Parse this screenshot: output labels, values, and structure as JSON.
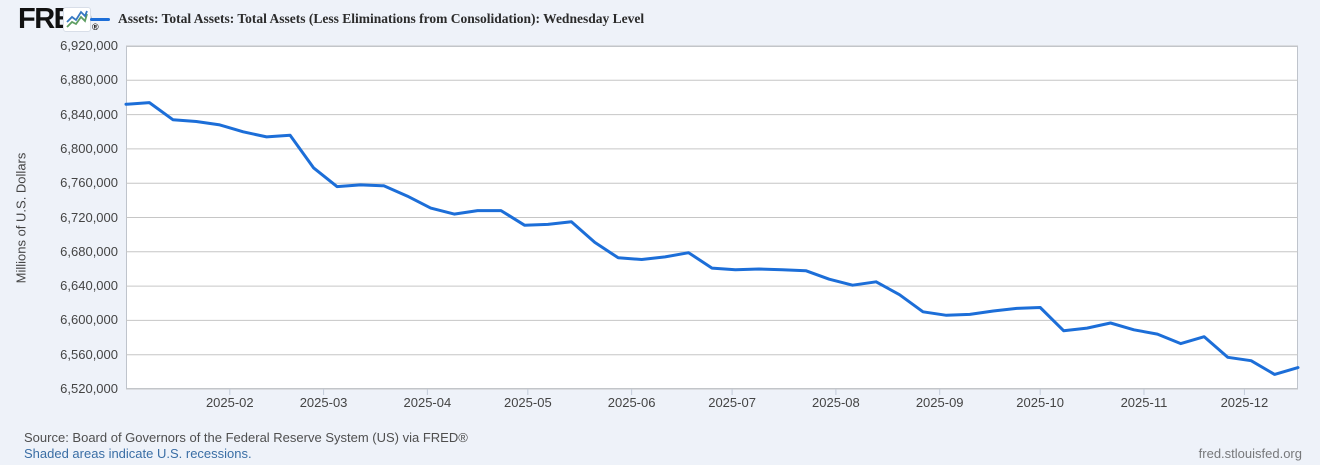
{
  "header": {
    "logo": "FRED",
    "registered": "®",
    "legend_label": "Assets: Total Assets: Total Assets (Less Eliminations from Consolidation): Wednesday Level"
  },
  "chart_data": {
    "type": "line",
    "title": "Assets: Total Assets: Total Assets (Less Eliminations from Consolidation): Wednesday Level",
    "ylabel": "Millions of U.S. Dollars",
    "ylim": [
      6520000,
      6920000
    ],
    "y_tick_step": 40000,
    "y_tick_labels": [
      "6,920,000",
      "6,880,000",
      "6,840,000",
      "6,800,000",
      "6,760,000",
      "6,720,000",
      "6,680,000",
      "6,640,000",
      "6,600,000",
      "6,560,000",
      "6,520,000"
    ],
    "x_tick_labels": [
      "2025-02",
      "2025-03",
      "2025-04",
      "2025-05",
      "2025-06",
      "2025-07",
      "2025-08",
      "2025-09",
      "2025-10",
      "2025-11",
      "2025-12"
    ],
    "grid": true,
    "legend_position": "top",
    "series": [
      {
        "name": "Assets: Total Assets: Total Assets (Less Eliminations from Consolidation): Wednesday Level",
        "frequency": "weekly-wednesday",
        "x": [
          "2025-01-01",
          "2025-01-08",
          "2025-01-15",
          "2025-01-22",
          "2025-01-29",
          "2025-02-05",
          "2025-02-12",
          "2025-02-19",
          "2025-02-26",
          "2025-03-05",
          "2025-03-12",
          "2025-03-19",
          "2025-03-26",
          "2025-04-02",
          "2025-04-09",
          "2025-04-16",
          "2025-04-23",
          "2025-04-30",
          "2025-05-07",
          "2025-05-14",
          "2025-05-21",
          "2025-05-28",
          "2025-06-04",
          "2025-06-11",
          "2025-06-18",
          "2025-06-25",
          "2025-07-02",
          "2025-07-09",
          "2025-07-16",
          "2025-07-23",
          "2025-07-30",
          "2025-08-06",
          "2025-08-13",
          "2025-08-20",
          "2025-08-27",
          "2025-09-03",
          "2025-09-10",
          "2025-09-17",
          "2025-09-24",
          "2025-10-01",
          "2025-10-08",
          "2025-10-15",
          "2025-10-22",
          "2025-10-29",
          "2025-11-05",
          "2025-11-12",
          "2025-11-19",
          "2025-11-26",
          "2025-12-03",
          "2025-12-10",
          "2025-12-17"
        ],
        "values": [
          6852000,
          6854000,
          6834000,
          6832000,
          6828000,
          6820000,
          6814000,
          6816000,
          6778000,
          6756000,
          6758000,
          6757000,
          6745000,
          6731000,
          6724000,
          6728000,
          6728000,
          6711000,
          6712000,
          6715000,
          6691000,
          6673000,
          6671000,
          6674000,
          6679000,
          6661000,
          6659000,
          6660000,
          6659000,
          6658000,
          6648000,
          6641000,
          6645000,
          6630000,
          6610000,
          6606000,
          6607000,
          6611000,
          6614000,
          6615000,
          6588000,
          6591000,
          6597000,
          6589000,
          6584000,
          6573000,
          6581000,
          6557000,
          6553000,
          6537000,
          6545000
        ]
      }
    ]
  },
  "footer": {
    "source": "Source: Board of Governors of the Federal Reserve System (US) via FRED®",
    "recession_note": "Shaded areas indicate U.S. recessions.",
    "site": "fred.stlouisfed.org"
  },
  "colors": {
    "line": "#1c6ed8",
    "background": "#eef2f9",
    "plot_background": "#ffffff",
    "grid": "#c6c6c6",
    "border": "#bfc4cc",
    "tick": "#c2cbd9",
    "axis_text": "#444444",
    "link": "#3a6ea5",
    "icon_blue": "#3678c2",
    "icon_green": "#5f9e62"
  }
}
